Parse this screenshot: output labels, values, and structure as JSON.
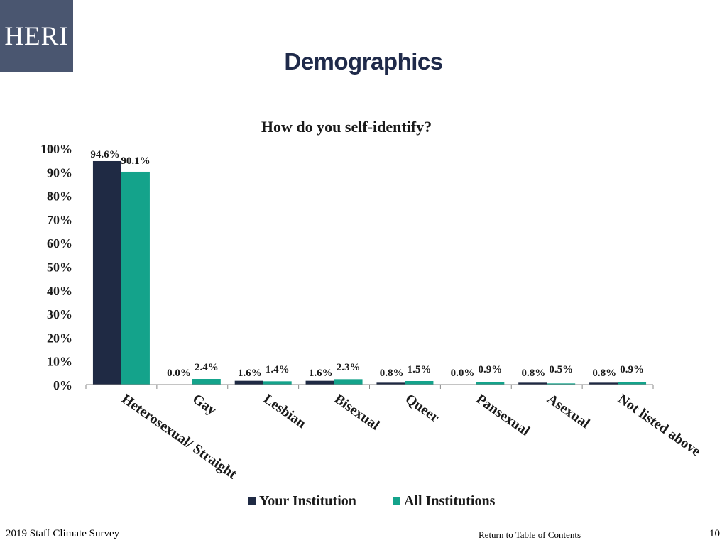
{
  "header": {
    "logo_text": "HERI",
    "title": "Demographics"
  },
  "colors": {
    "logo_bg": "#4a5670",
    "your_institution": "#1f2a44",
    "all_institutions": "#14a38b",
    "axis": "#888888",
    "text": "#1a1a1a"
  },
  "chart_data": {
    "type": "bar",
    "title": "How do you self-identify?",
    "xlabel": "",
    "ylabel": "",
    "ylim": [
      0,
      100
    ],
    "yticks": [
      "0%",
      "10%",
      "20%",
      "30%",
      "40%",
      "50%",
      "60%",
      "70%",
      "80%",
      "90%",
      "100%"
    ],
    "grid": false,
    "legend_position": "bottom",
    "categories": [
      "Heterosexual/ Straight",
      "Gay",
      "Lesbian",
      "Bisexual",
      "Queer",
      "Pansexual",
      "Asexual",
      "Not listed above"
    ],
    "series": [
      {
        "name": "Your Institution",
        "values": [
          94.6,
          0.0,
          1.6,
          1.6,
          0.8,
          0.0,
          0.8,
          0.8
        ],
        "labels": [
          "94.6%",
          "0.0%",
          "1.6%",
          "1.6%",
          "0.8%",
          "0.0%",
          "0.8%",
          "0.8%"
        ]
      },
      {
        "name": "All Institutions",
        "values": [
          90.1,
          2.4,
          1.4,
          2.3,
          1.5,
          0.9,
          0.5,
          0.9
        ],
        "labels": [
          "90.1%",
          "2.4%",
          "1.4%",
          "2.3%",
          "1.5%",
          "0.9%",
          "0.5%",
          "0.9%"
        ]
      }
    ]
  },
  "footer": {
    "left": "2019 Staff Climate Survey",
    "link": "Return to Table of Contents",
    "page_number": "10"
  }
}
